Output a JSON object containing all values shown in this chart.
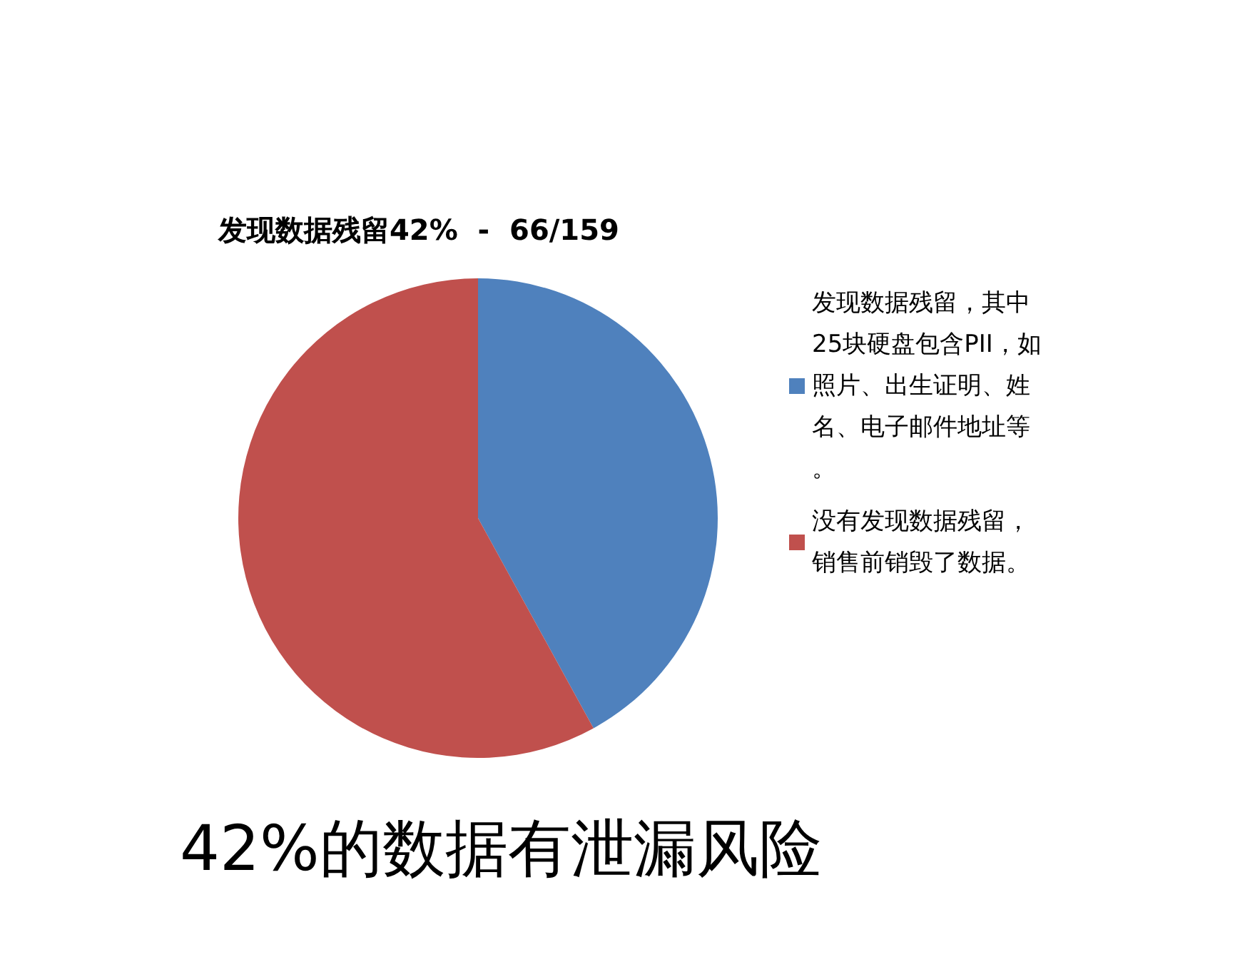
{
  "chart_data": {
    "type": "pie",
    "title": "发现数据残留42%  -  66/159",
    "categories": [
      "发现数据残留，其中25块硬盘包含PII，如照片、出生证明、姓名、电子邮件地址等。",
      "没有发现数据残留，销售前销毁了数据。"
    ],
    "values": [
      42,
      58
    ],
    "colors": [
      "#4f81bd",
      "#c0504d"
    ],
    "legend": "right",
    "annotations": [
      "42%的数据有泄漏风险"
    ]
  }
}
